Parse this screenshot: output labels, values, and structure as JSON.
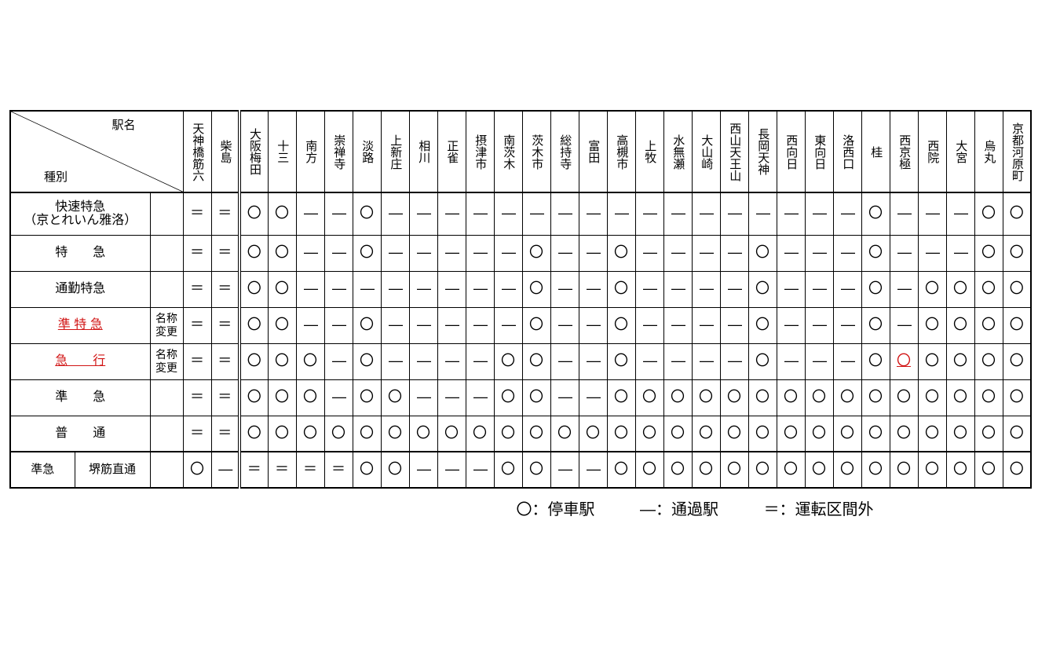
{
  "header": {
    "top": "駅名",
    "bottom": "種別"
  },
  "stations": [
    "天神橋筋六",
    "柴島",
    "大阪梅田",
    "十三",
    "南方",
    "崇禅寺",
    "淡路",
    "上新庄",
    "相川",
    "正雀",
    "摂津市",
    "南茨木",
    "茨木市",
    "総持寺",
    "富田",
    "高槻市",
    "上牧",
    "水無瀬",
    "大山崎",
    "西山天王山",
    "長岡天神",
    "西向日",
    "東向日",
    "洛西口",
    "桂",
    "西京極",
    "西院",
    "大宮",
    "烏丸",
    "京都河原町"
  ],
  "note_text": "名称変更",
  "services": [
    {
      "label": "快速特急\n（京とれいん雅洛）",
      "red": false,
      "note": false,
      "stops": [
        "",
        "＝",
        "＝",
        "〇",
        "〇",
        "―",
        "―",
        "〇",
        "―",
        "―",
        "―",
        "―",
        "―",
        "―",
        "―",
        "―",
        "―",
        "―",
        "―",
        "―",
        "―",
        "―",
        "―",
        "―",
        "―",
        "〇",
        "―",
        "―",
        "―",
        "〇",
        "〇"
      ]
    },
    {
      "label": "特　　急",
      "red": false,
      "note": false,
      "stops": [
        "",
        "＝",
        "＝",
        "〇",
        "〇",
        "―",
        "―",
        "〇",
        "―",
        "―",
        "―",
        "―",
        "―",
        "〇",
        "―",
        "―",
        "〇",
        "―",
        "―",
        "―",
        "―",
        "〇",
        "―",
        "―",
        "―",
        "〇",
        "―",
        "―",
        "―",
        "〇",
        "〇"
      ]
    },
    {
      "label": "通勤特急",
      "red": false,
      "note": false,
      "stops": [
        "",
        "＝",
        "＝",
        "〇",
        "〇",
        "―",
        "―",
        "―",
        "―",
        "―",
        "―",
        "―",
        "―",
        "〇",
        "―",
        "―",
        "〇",
        "―",
        "―",
        "―",
        "―",
        "〇",
        "―",
        "―",
        "―",
        "〇",
        "―",
        "〇",
        "〇",
        "〇",
        "〇"
      ]
    },
    {
      "label": "準 特 急",
      "red": true,
      "note": true,
      "stops": [
        "",
        "＝",
        "＝",
        "〇",
        "〇",
        "―",
        "―",
        "〇",
        "―",
        "―",
        "―",
        "―",
        "―",
        "〇",
        "―",
        "―",
        "〇",
        "―",
        "―",
        "―",
        "―",
        "〇",
        "―",
        "―",
        "―",
        "〇",
        "―",
        "〇",
        "〇",
        "〇",
        "〇"
      ]
    },
    {
      "label": "急　　行",
      "red": true,
      "note": true,
      "stops": [
        "",
        "＝",
        "＝",
        "〇",
        "〇",
        "〇",
        "―",
        "〇",
        "―",
        "―",
        "―",
        "―",
        "〇",
        "〇",
        "―",
        "―",
        "〇",
        "―",
        "―",
        "―",
        "―",
        "〇",
        "―",
        "―",
        "―",
        "〇",
        "〇R",
        "〇",
        "〇",
        "〇",
        "〇"
      ]
    },
    {
      "label": "準　　急",
      "red": false,
      "note": false,
      "stops": [
        "",
        "＝",
        "＝",
        "〇",
        "〇",
        "〇",
        "―",
        "〇",
        "〇",
        "―",
        "―",
        "―",
        "〇",
        "〇",
        "―",
        "―",
        "〇",
        "〇",
        "〇",
        "〇",
        "〇",
        "〇",
        "〇",
        "〇",
        "〇",
        "〇",
        "〇",
        "〇",
        "〇",
        "〇",
        "〇"
      ]
    },
    {
      "label": "普　　通",
      "red": false,
      "note": false,
      "stops": [
        "",
        "＝",
        "＝",
        "〇",
        "〇",
        "〇",
        "〇",
        "〇",
        "〇",
        "〇",
        "〇",
        "〇",
        "〇",
        "〇",
        "〇",
        "〇",
        "〇",
        "〇",
        "〇",
        "〇",
        "〇",
        "〇",
        "〇",
        "〇",
        "〇",
        "〇",
        "〇",
        "〇",
        "〇",
        "〇",
        "〇"
      ]
    }
  ],
  "bottom": {
    "col1": "準急",
    "col2": "堺筋直通",
    "stops": [
      "",
      "〇",
      "―",
      "＝",
      "＝",
      "＝",
      "＝",
      "〇",
      "〇",
      "―",
      "―",
      "―",
      "〇",
      "〇",
      "―",
      "―",
      "〇",
      "〇",
      "〇",
      "〇",
      "〇",
      "〇",
      "〇",
      "〇",
      "〇",
      "〇",
      "〇",
      "〇",
      "〇",
      "〇",
      "〇"
    ]
  },
  "legend": {
    "stop": "〇：停車駅",
    "pass": "―：通過駅",
    "out": "＝：運転区間外"
  }
}
